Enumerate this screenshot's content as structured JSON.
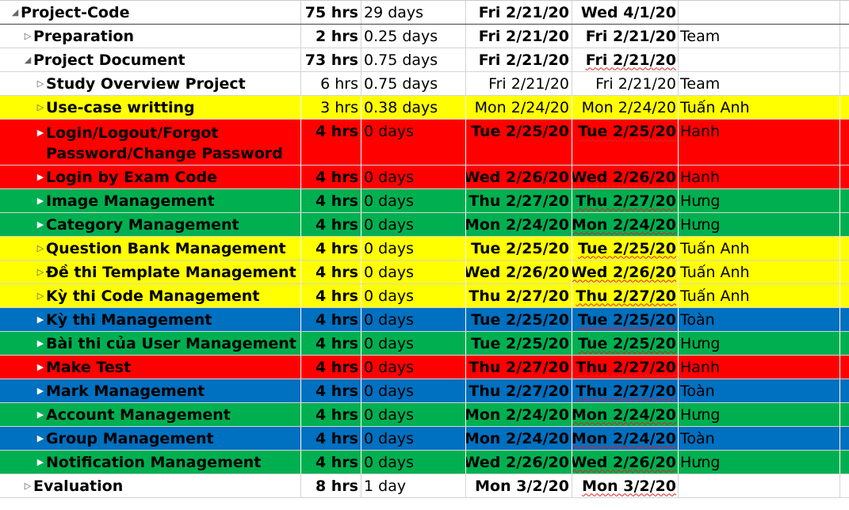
{
  "rows": [
    {
      "name": "Project-Code",
      "work": "75 hrs",
      "duration": "29 days",
      "start": "Fri 2/21/20",
      "finish": "Wed 4/1/20",
      "resource": "",
      "color": "",
      "level": 0,
      "bold": true,
      "toggle": "collapse"
    },
    {
      "name": "Preparation",
      "work": "2 hrs",
      "duration": "0.25 days",
      "start": "Fri 2/21/20",
      "finish": "Fri 2/21/20",
      "resource": "Team",
      "color": "",
      "level": 1,
      "bold": true,
      "toggle": "expand"
    },
    {
      "name": "Project Document",
      "work": "73 hrs",
      "duration": "0.75 days",
      "start": "Fri 2/21/20",
      "finish": "Fri 2/21/20",
      "resource": "",
      "color": "",
      "level": 1,
      "bold": true,
      "toggle": "collapse"
    },
    {
      "name": "Study Overview Project",
      "work": "6 hrs",
      "duration": "0.75 days",
      "start": "Fri 2/21/20",
      "finish": "Fri 2/21/20",
      "resource": "Team",
      "color": "",
      "level": 2,
      "bold": true,
      "toggle": "expand"
    },
    {
      "name": "Use-case writting",
      "work": "3 hrs",
      "duration": "0.38 days",
      "start": "Mon 2/24/20",
      "finish": "Mon 2/24/20",
      "resource": "Tuấn Anh",
      "color": "yellow",
      "level": 2,
      "bold": true,
      "toggle": "expand"
    },
    {
      "name": "Login/Logout/Forgot Password/Change Password",
      "work": "4 hrs",
      "duration": "0 days",
      "start": "Tue 2/25/20",
      "finish": "Tue 2/25/20",
      "resource": "Hanh",
      "color": "red",
      "level": 2,
      "bold": true,
      "toggle": "expand"
    },
    {
      "name": "Login by Exam Code",
      "work": "4 hrs",
      "duration": "0 days",
      "start": "Wed 2/26/20",
      "finish": "Wed 2/26/20",
      "resource": "Hanh",
      "color": "red",
      "level": 2,
      "bold": true,
      "toggle": "expand"
    },
    {
      "name": "Image Management",
      "work": "4 hrs",
      "duration": "0 days",
      "start": "Thu 2/27/20",
      "finish": "Thu 2/27/20",
      "resource": "Hưng",
      "color": "green",
      "level": 2,
      "bold": true,
      "toggle": "expand"
    },
    {
      "name": "Category Management",
      "work": "4 hrs",
      "duration": "0 days",
      "start": "Mon 2/24/20",
      "finish": "Mon 2/24/20",
      "resource": "Hưng",
      "color": "green",
      "level": 2,
      "bold": true,
      "toggle": "expand"
    },
    {
      "name": "Question Bank Management",
      "work": "4 hrs",
      "duration": "0 days",
      "start": "Tue 2/25/20",
      "finish": "Tue 2/25/20",
      "resource": "Tuấn Anh",
      "color": "yellow",
      "level": 2,
      "bold": true,
      "toggle": "expand"
    },
    {
      "name": "Đề thi Template Management",
      "work": "4 hrs",
      "duration": "0 days",
      "start": "Wed 2/26/20",
      "finish": "Wed 2/26/20",
      "resource": "Tuấn Anh",
      "color": "yellow",
      "level": 2,
      "bold": true,
      "toggle": "expand"
    },
    {
      "name": "Kỳ thi Code Management",
      "work": "4 hrs",
      "duration": "0 days",
      "start": "Thu 2/27/20",
      "finish": "Thu 2/27/20",
      "resource": "Tuấn Anh",
      "color": "yellow",
      "level": 2,
      "bold": true,
      "toggle": "expand"
    },
    {
      "name": "Kỳ thi Management",
      "work": "4 hrs",
      "duration": "0 days",
      "start": "Tue 2/25/20",
      "finish": "Tue 2/25/20",
      "resource": "Toàn",
      "color": "blue",
      "level": 2,
      "bold": true,
      "toggle": "expand"
    },
    {
      "name": "Bài thi của User Management",
      "work": "4 hrs",
      "duration": "0 days",
      "start": "Tue 2/25/20",
      "finish": "Tue 2/25/20",
      "resource": "Hưng",
      "color": "green",
      "level": 2,
      "bold": true,
      "toggle": "expand"
    },
    {
      "name": "Make Test",
      "work": "4 hrs",
      "duration": "0 days",
      "start": "Thu 2/27/20",
      "finish": "Thu 2/27/20",
      "resource": "Hanh",
      "color": "red",
      "level": 2,
      "bold": true,
      "toggle": "expand"
    },
    {
      "name": "Mark Management",
      "work": "4 hrs",
      "duration": "0 days",
      "start": "Thu 2/27/20",
      "finish": "Thu 2/27/20",
      "resource": "Toàn",
      "color": "blue",
      "level": 2,
      "bold": true,
      "toggle": "expand"
    },
    {
      "name": "Account Management",
      "work": "4 hrs",
      "duration": "0 days",
      "start": "Mon 2/24/20",
      "finish": "Mon 2/24/20",
      "resource": "Hưng",
      "color": "green",
      "level": 2,
      "bold": true,
      "toggle": "expand"
    },
    {
      "name": "Group Management",
      "work": "4 hrs",
      "duration": "0 days",
      "start": "Mon 2/24/20",
      "finish": "Mon 2/24/20",
      "resource": "Toàn",
      "color": "blue",
      "level": 2,
      "bold": true,
      "toggle": "expand"
    },
    {
      "name": "Notification Management",
      "work": "4 hrs",
      "duration": "0 days",
      "start": "Wed 2/26/20",
      "finish": "Wed 2/26/20",
      "resource": "Hưng",
      "color": "green",
      "level": 2,
      "bold": true,
      "toggle": "expand"
    },
    {
      "name": "Evaluation",
      "work": "8 hrs",
      "duration": "1 day",
      "start": "Mon 3/2/20",
      "finish": "Mon 3/2/20",
      "resource": "",
      "color": "",
      "level": 1,
      "bold": true,
      "toggle": "expand"
    }
  ]
}
